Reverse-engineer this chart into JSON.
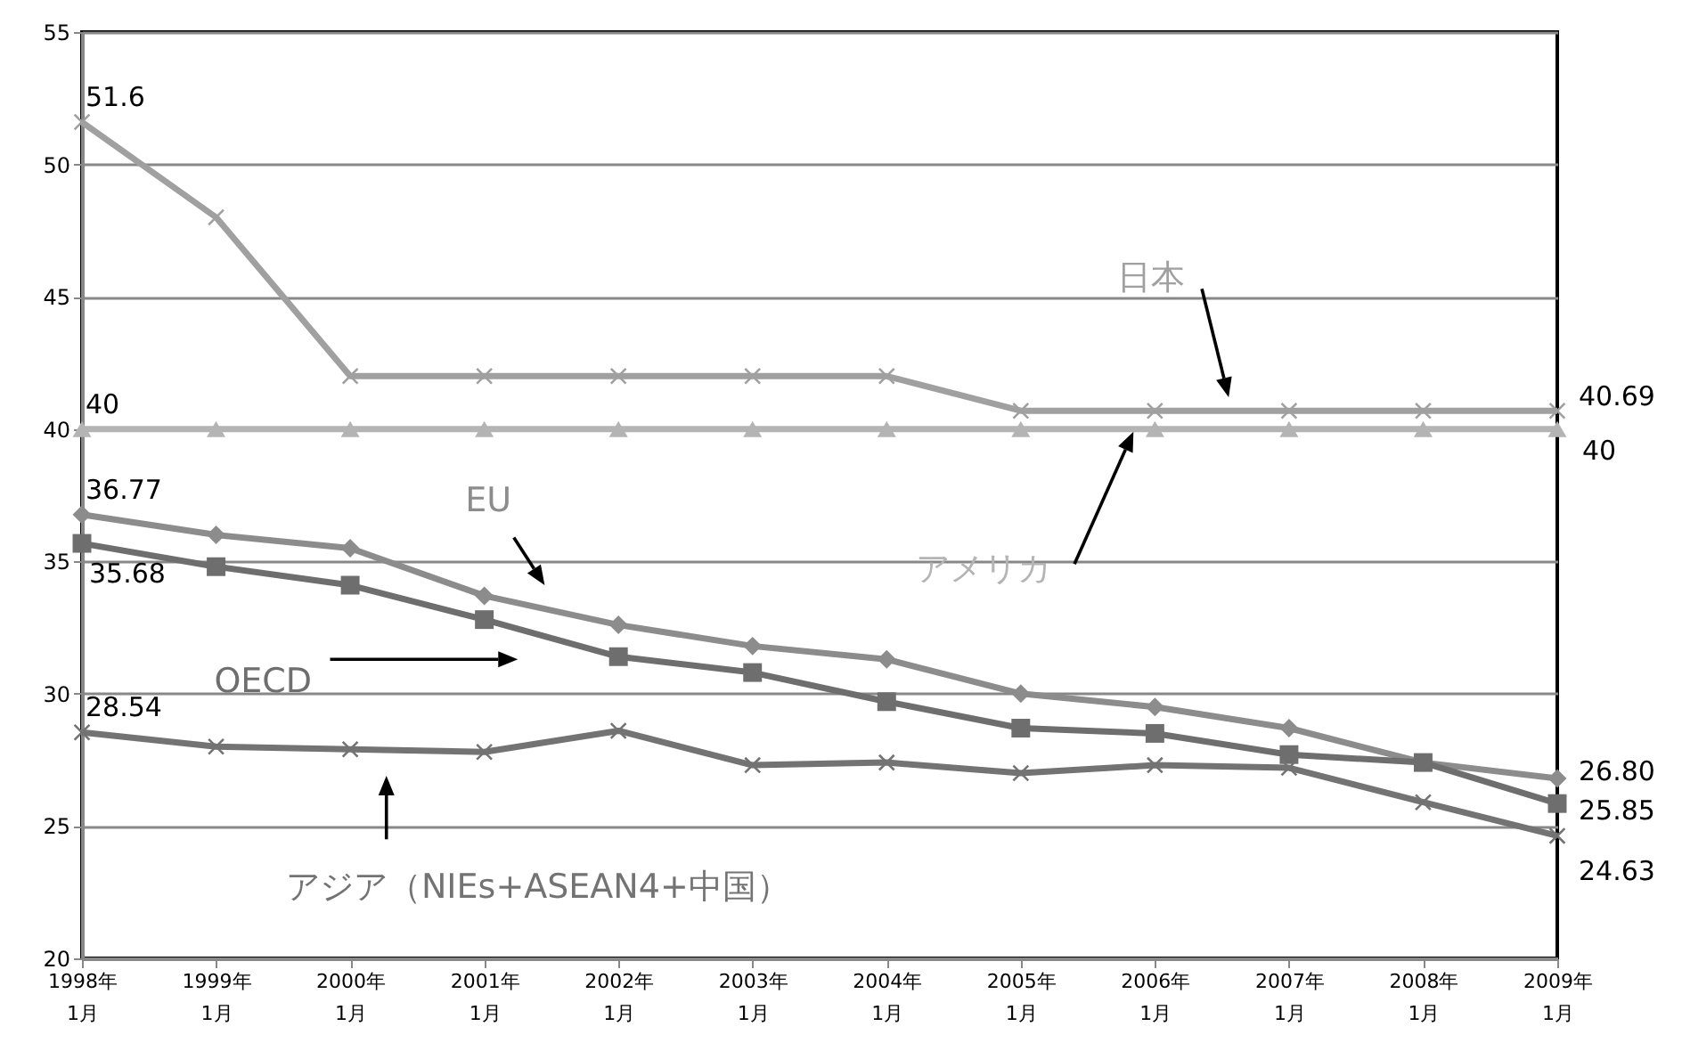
{
  "chart_data": {
    "type": "line",
    "categories": [
      "1998年\n1月",
      "1999年\n1月",
      "2000年\n1月",
      "2001年\n1月",
      "2002年\n1月",
      "2003年\n1月",
      "2004年\n1月",
      "2005年\n1月",
      "2006年\n1月",
      "2007年\n1月",
      "2008年\n1月",
      "2009年\n1月"
    ],
    "ylim": [
      20,
      55
    ],
    "yticks": [
      20,
      25,
      30,
      35,
      40,
      45,
      50,
      55
    ],
    "grid": "y",
    "series": [
      {
        "name": "日本",
        "color": "#a0a0a0",
        "marker": "cross",
        "values": [
          51.6,
          48,
          42,
          42,
          42,
          42,
          42,
          40.69,
          40.69,
          40.69,
          40.69,
          40.69
        ],
        "value_labels": [
          "51.6",
          null,
          null,
          null,
          null,
          null,
          null,
          null,
          null,
          null,
          null,
          "40.69"
        ]
      },
      {
        "name": "アメリカ",
        "color": "#b4b4b4",
        "marker": "triangle",
        "values": [
          40,
          40,
          40,
          40,
          40,
          40,
          40,
          40,
          40,
          40,
          40,
          40
        ],
        "value_labels": [
          "40",
          null,
          null,
          null,
          null,
          null,
          null,
          null,
          null,
          null,
          null,
          "40"
        ]
      },
      {
        "name": "EU",
        "color": "#8c8c8c",
        "marker": "diamond",
        "values": [
          36.77,
          36.0,
          35.5,
          33.7,
          32.6,
          31.8,
          31.3,
          30.0,
          29.5,
          28.7,
          27.4,
          26.8
        ],
        "value_labels": [
          "36.77",
          null,
          null,
          null,
          null,
          null,
          null,
          null,
          null,
          null,
          null,
          "26.80"
        ]
      },
      {
        "name": "OECD",
        "color": "#6e6e6e",
        "marker": "square",
        "values": [
          35.68,
          34.8,
          34.1,
          32.8,
          31.4,
          30.8,
          29.7,
          28.7,
          28.5,
          27.7,
          27.4,
          25.85
        ],
        "value_labels": [
          "35.68",
          null,
          null,
          null,
          null,
          null,
          null,
          null,
          null,
          null,
          null,
          "25.85"
        ]
      },
      {
        "name": "アジア（NIEs+ASEAN4+中国）",
        "color": "#737373",
        "marker": "cross",
        "values": [
          28.54,
          28.0,
          27.9,
          27.8,
          28.6,
          27.3,
          27.4,
          27.0,
          27.3,
          27.2,
          25.9,
          24.63
        ],
        "value_labels": [
          "28.54",
          null,
          null,
          null,
          null,
          null,
          null,
          null,
          null,
          null,
          null,
          "24.63"
        ]
      }
    ]
  }
}
